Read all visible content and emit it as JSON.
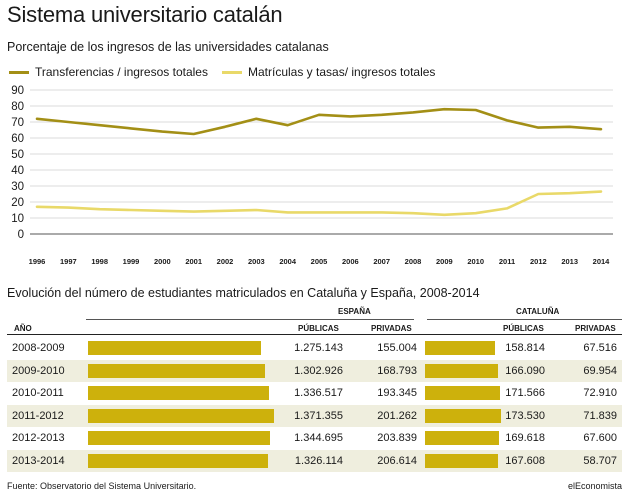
{
  "title": "Sistema universitario catalán",
  "subtitle": "Porcentaje de los ingresos de las universidades catalanas",
  "chart_data": {
    "type": "line",
    "title": "Sistema universitario catalán",
    "subtitle": "Porcentaje de los ingresos de las universidades catalanas",
    "x": [
      "1996",
      "1997",
      "1998",
      "1999",
      "2000",
      "2001",
      "2002",
      "2003",
      "2004",
      "2005",
      "2006",
      "2007",
      "2008",
      "2009",
      "2010",
      "2011",
      "2012",
      "2013",
      "2014"
    ],
    "series": [
      {
        "name": "Transferencias / ingresos totales",
        "color": "#a38f16",
        "values": [
          72,
          70,
          68,
          66,
          64,
          62.5,
          67,
          72,
          68,
          74.5,
          73.5,
          74.5,
          76,
          78,
          77.5,
          71,
          66.5,
          67,
          65.5
        ]
      },
      {
        "name": "Matrículas y tasas/ ingresos totales",
        "color": "#e9d969",
        "values": [
          17,
          16.5,
          15.5,
          15,
          14.5,
          14,
          14.5,
          15,
          13.5,
          13.5,
          13.5,
          13.5,
          13,
          12,
          13,
          16,
          25,
          25.5,
          26.5
        ]
      }
    ],
    "yticks": [
      0,
      10,
      20,
      30,
      40,
      50,
      60,
      70,
      80,
      90
    ],
    "ylim": [
      0,
      90
    ],
    "grid": true,
    "legend": "top"
  },
  "table": {
    "title": "Evolución del número de estudiantes matriculados en Cataluña y España, 2008-2014",
    "col_year": "AÑO",
    "group_spain": "ESPAÑA",
    "group_cat": "CATALUÑA",
    "col_public": "PÚBLICAS",
    "col_private": "PRIVADAS",
    "rows": [
      {
        "year": "2008-2009",
        "es_pub": "1.275.143",
        "es_pub_v": 1275143,
        "es_priv": "155.004",
        "cat_pub": "158.814",
        "cat_pub_v": 158814,
        "cat_priv": "67.516"
      },
      {
        "year": "2009-2010",
        "es_pub": "1.302.926",
        "es_pub_v": 1302926,
        "es_priv": "168.793",
        "cat_pub": "166.090",
        "cat_pub_v": 166090,
        "cat_priv": "69.954"
      },
      {
        "year": "2010-2011",
        "es_pub": "1.336.517",
        "es_pub_v": 1336517,
        "es_priv": "193.345",
        "cat_pub": "171.566",
        "cat_pub_v": 171566,
        "cat_priv": "72.910"
      },
      {
        "year": "2011-2012",
        "es_pub": "1.371.355",
        "es_pub_v": 1371355,
        "es_priv": "201.262",
        "cat_pub": "173.530",
        "cat_pub_v": 173530,
        "cat_priv": "71.839"
      },
      {
        "year": "2012-2013",
        "es_pub": "1.344.695",
        "es_pub_v": 1344695,
        "es_priv": "203.839",
        "cat_pub": "169.618",
        "cat_pub_v": 169618,
        "cat_priv": "67.600"
      },
      {
        "year": "2013-2014",
        "es_pub": "1.326.114",
        "es_pub_v": 1326114,
        "es_priv": "206.614",
        "cat_pub": "167.608",
        "cat_pub_v": 167608,
        "cat_priv": "58.707"
      }
    ]
  },
  "footer": {
    "source": "Fuente: Observatorio del Sistema Universitario.",
    "brand": "elEconomista"
  }
}
